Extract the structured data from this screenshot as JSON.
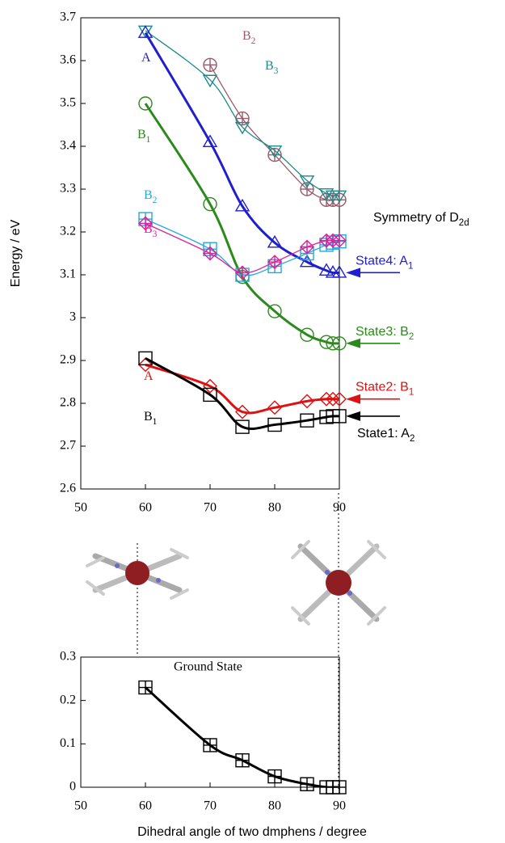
{
  "chart_data": [
    {
      "type": "line",
      "ylabel": "Energy / eV",
      "xlim": [
        50,
        90
      ],
      "ylim": [
        2.6,
        3.7
      ],
      "xticks": [
        50,
        60,
        70,
        80,
        90
      ],
      "yticks": [
        2.6,
        2.7,
        2.8,
        2.9,
        3,
        3.1,
        3.2,
        3.3,
        3.4,
        3.5,
        3.6,
        3.7
      ],
      "x": [
        60,
        70,
        75,
        80,
        85,
        88,
        89,
        90
      ],
      "series": [
        {
          "name": "B",
          "name_sub": "2",
          "color": "#9b5a6a",
          "marker": "circle-plus",
          "thick": false,
          "values": [
            null,
            3.59,
            3.465,
            3.38,
            3.3,
            3.275,
            3.275,
            3.275
          ]
        },
        {
          "name": "B",
          "name_sub": "3",
          "color": "#1a8a8a",
          "marker": "triangle-down",
          "thick": false,
          "values": [
            3.67,
            3.555,
            3.445,
            3.39,
            3.32,
            3.29,
            3.285,
            3.285
          ]
        },
        {
          "name": "A",
          "color": "#1f1fcf",
          "marker": "triangle-up",
          "thick": true,
          "values": [
            3.665,
            3.41,
            3.26,
            3.175,
            3.13,
            3.11,
            3.105,
            3.105
          ]
        },
        {
          "name": "B",
          "name_sub": "1",
          "color": "#2a8a1a",
          "marker": "circle",
          "thick": true,
          "values": [
            3.5,
            3.265,
            3.095,
            3.015,
            2.96,
            2.943,
            2.94,
            2.94
          ]
        },
        {
          "name": "B",
          "name_sub": "2",
          "color": "#22a8e0",
          "marker": "square-plus",
          "thick": false,
          "values": [
            3.23,
            3.16,
            3.1,
            3.12,
            3.15,
            3.17,
            3.175,
            3.178
          ]
        },
        {
          "name": "B",
          "name_sub": "3",
          "color": "#e0209a",
          "marker": "diamond-plus",
          "thick": false,
          "values": [
            3.22,
            3.15,
            3.105,
            3.13,
            3.165,
            3.18,
            3.18,
            3.18
          ]
        },
        {
          "name": "A",
          "color": "#e01010",
          "marker": "diamond",
          "thick": true,
          "values": [
            2.89,
            2.84,
            2.78,
            2.79,
            2.805,
            2.81,
            2.81,
            2.81
          ]
        },
        {
          "name": "B",
          "name_sub": "1",
          "color": "#000000",
          "marker": "square",
          "thick": true,
          "values": [
            2.905,
            2.82,
            2.745,
            2.75,
            2.76,
            2.768,
            2.77,
            2.77
          ]
        }
      ],
      "symmetry": {
        "text": "Symmetry of D",
        "sub": "2d"
      },
      "states": [
        {
          "text": "State4: A",
          "sub": "1",
          "color": "#1f1fcf"
        },
        {
          "text": "State3: B",
          "sub": "2",
          "color": "#2a8a1a"
        },
        {
          "text": "State2: B",
          "sub": "1",
          "color": "#e01010"
        },
        {
          "text": "State1: A",
          "sub": "2",
          "color": "#000000"
        }
      ]
    },
    {
      "type": "line",
      "xlabel": "Dihedral angle of two dmphens / degree",
      "annotation": "Ground State",
      "xlim": [
        50,
        90
      ],
      "ylim": [
        0,
        0.3
      ],
      "xticks": [
        50,
        60,
        70,
        80,
        90
      ],
      "yticks": [
        0,
        0.1,
        0.2,
        0.3
      ],
      "x": [
        60,
        70,
        75,
        80,
        85,
        88,
        89,
        90
      ],
      "series": [
        {
          "color": "#000000",
          "marker": "square-plus",
          "thick": true,
          "values": [
            0.23,
            0.097,
            0.062,
            0.025,
            0.007,
            0.0,
            0.0,
            0.0
          ]
        }
      ]
    }
  ]
}
